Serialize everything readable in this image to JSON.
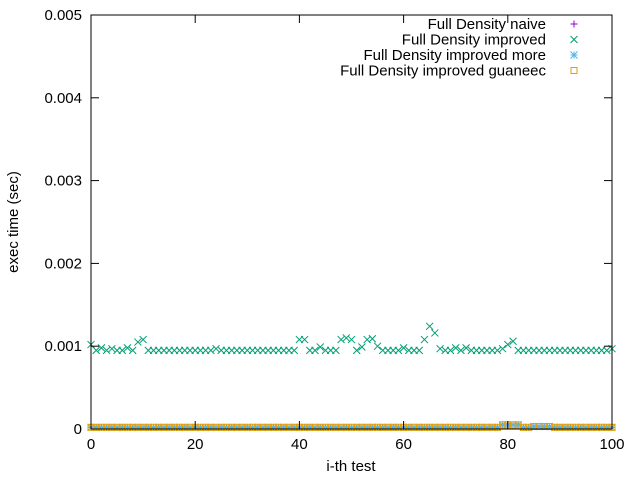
{
  "chart_data": {
    "type": "scatter",
    "title": "",
    "xlabel": "i-th test",
    "ylabel": "exec time (sec)",
    "xlim": [
      0,
      100
    ],
    "ylim": [
      0,
      0.005
    ],
    "x_ticks": [
      0,
      20,
      40,
      60,
      80,
      100
    ],
    "x_tick_labels": [
      "0",
      "20",
      "40",
      "60",
      "80",
      "100"
    ],
    "y_ticks": [
      0,
      0.001,
      0.002,
      0.003,
      0.004,
      0.005
    ],
    "y_tick_labels": [
      "0",
      "0.001",
      "0.002",
      "0.003",
      "0.004",
      "0.005"
    ],
    "grid": false,
    "legend_position": "top-right",
    "series": [
      {
        "name": "Full Density naive",
        "marker": "plus",
        "color": "#9400d3",
        "x_start": 0,
        "x_step": 1,
        "values": [
          2e-05,
          2e-05,
          2e-05,
          2e-05,
          2e-05,
          2e-05,
          2e-05,
          2e-05,
          2e-05,
          2e-05,
          2e-05,
          2e-05,
          2e-05,
          2e-05,
          2e-05,
          2e-05,
          2e-05,
          2e-05,
          2e-05,
          2e-05,
          2e-05,
          2e-05,
          2e-05,
          2e-05,
          2e-05,
          2e-05,
          2e-05,
          2e-05,
          2e-05,
          2e-05,
          2e-05,
          2e-05,
          2e-05,
          2e-05,
          2e-05,
          2e-05,
          2e-05,
          2e-05,
          2e-05,
          2e-05,
          2e-05,
          2e-05,
          2e-05,
          2e-05,
          2e-05,
          2e-05,
          2e-05,
          2e-05,
          2e-05,
          2e-05,
          2e-05,
          2e-05,
          2e-05,
          2e-05,
          2e-05,
          2e-05,
          2e-05,
          2e-05,
          2e-05,
          2e-05,
          2e-05,
          2e-05,
          2e-05,
          2e-05,
          2e-05,
          2e-05,
          2e-05,
          2e-05,
          2e-05,
          2e-05,
          2e-05,
          2e-05,
          2e-05,
          2e-05,
          2e-05,
          2e-05,
          2e-05,
          2e-05,
          2e-05,
          5e-05,
          5e-05,
          5e-05,
          5e-05,
          2e-05,
          2e-05,
          3e-05,
          3e-05,
          3e-05,
          3e-05,
          2e-05,
          2e-05,
          2e-05,
          2e-05,
          2e-05,
          2e-05,
          2e-05,
          2e-05,
          2e-05,
          2e-05,
          2e-05,
          2e-05
        ]
      },
      {
        "name": "Full Density improved",
        "marker": "cross",
        "color": "#009e73",
        "x_start": 0,
        "x_step": 1,
        "values": [
          0.00102,
          0.00095,
          0.00098,
          0.00095,
          0.00097,
          0.00095,
          0.00095,
          0.00098,
          0.00095,
          0.00105,
          0.00108,
          0.00095,
          0.00095,
          0.00095,
          0.00095,
          0.00095,
          0.00095,
          0.00095,
          0.00095,
          0.00095,
          0.00095,
          0.00095,
          0.00095,
          0.00095,
          0.00097,
          0.00095,
          0.00095,
          0.00095,
          0.00095,
          0.00095,
          0.00095,
          0.00095,
          0.00095,
          0.00095,
          0.00095,
          0.00095,
          0.00095,
          0.00095,
          0.00095,
          0.00095,
          0.00108,
          0.00108,
          0.00095,
          0.00095,
          0.00099,
          0.00095,
          0.00095,
          0.00095,
          0.00108,
          0.0011,
          0.00108,
          0.00095,
          0.00099,
          0.00108,
          0.00109,
          0.001,
          0.00095,
          0.00095,
          0.00095,
          0.00095,
          0.00098,
          0.00095,
          0.00095,
          0.00095,
          0.00108,
          0.00124,
          0.00116,
          0.00097,
          0.00095,
          0.00095,
          0.00098,
          0.00095,
          0.00098,
          0.00095,
          0.00095,
          0.00095,
          0.00095,
          0.00095,
          0.00095,
          0.00097,
          0.00102,
          0.00106,
          0.00095,
          0.00095,
          0.00095,
          0.00095,
          0.00095,
          0.00095,
          0.00095,
          0.00095,
          0.00095,
          0.00095,
          0.00095,
          0.00095,
          0.00095,
          0.00095,
          0.00095,
          0.00095,
          0.00095,
          0.00095,
          0.00097
        ]
      },
      {
        "name": "Full Density improved more",
        "marker": "star",
        "color": "#56b4e9",
        "x_start": 0,
        "x_step": 1,
        "values": [
          2e-05,
          2e-05,
          2e-05,
          2e-05,
          2e-05,
          2e-05,
          2e-05,
          2e-05,
          2e-05,
          2e-05,
          2e-05,
          2e-05,
          2e-05,
          2e-05,
          2e-05,
          2e-05,
          2e-05,
          2e-05,
          2e-05,
          2e-05,
          2e-05,
          2e-05,
          2e-05,
          2e-05,
          2e-05,
          2e-05,
          2e-05,
          2e-05,
          2e-05,
          2e-05,
          2e-05,
          2e-05,
          2e-05,
          2e-05,
          2e-05,
          2e-05,
          2e-05,
          2e-05,
          2e-05,
          2e-05,
          2e-05,
          2e-05,
          2e-05,
          2e-05,
          2e-05,
          2e-05,
          2e-05,
          2e-05,
          2e-05,
          2e-05,
          2e-05,
          2e-05,
          2e-05,
          2e-05,
          2e-05,
          2e-05,
          2e-05,
          2e-05,
          2e-05,
          2e-05,
          2e-05,
          2e-05,
          2e-05,
          2e-05,
          2e-05,
          2e-05,
          2e-05,
          2e-05,
          2e-05,
          2e-05,
          2e-05,
          2e-05,
          2e-05,
          2e-05,
          2e-05,
          2e-05,
          2e-05,
          2e-05,
          2e-05,
          5e-05,
          5e-05,
          5e-05,
          5e-05,
          2e-05,
          2e-05,
          3e-05,
          3e-05,
          3e-05,
          3e-05,
          2e-05,
          2e-05,
          2e-05,
          2e-05,
          2e-05,
          2e-05,
          2e-05,
          2e-05,
          2e-05,
          2e-05,
          2e-05,
          2e-05
        ]
      },
      {
        "name": "Full Density improved guaneec",
        "marker": "square",
        "color": "#e69f00",
        "x_start": 0,
        "x_step": 1,
        "values": [
          2e-05,
          2e-05,
          2e-05,
          2e-05,
          2e-05,
          2e-05,
          2e-05,
          2e-05,
          2e-05,
          2e-05,
          2e-05,
          2e-05,
          2e-05,
          2e-05,
          2e-05,
          2e-05,
          2e-05,
          2e-05,
          2e-05,
          2e-05,
          2e-05,
          2e-05,
          2e-05,
          2e-05,
          2e-05,
          2e-05,
          2e-05,
          2e-05,
          2e-05,
          2e-05,
          2e-05,
          2e-05,
          2e-05,
          2e-05,
          2e-05,
          2e-05,
          2e-05,
          2e-05,
          2e-05,
          2e-05,
          2e-05,
          2e-05,
          2e-05,
          2e-05,
          2e-05,
          2e-05,
          2e-05,
          2e-05,
          2e-05,
          2e-05,
          2e-05,
          2e-05,
          2e-05,
          2e-05,
          2e-05,
          2e-05,
          2e-05,
          2e-05,
          2e-05,
          2e-05,
          2e-05,
          2e-05,
          2e-05,
          2e-05,
          2e-05,
          2e-05,
          2e-05,
          2e-05,
          2e-05,
          2e-05,
          2e-05,
          2e-05,
          2e-05,
          2e-05,
          2e-05,
          2e-05,
          2e-05,
          2e-05,
          2e-05,
          5e-05,
          5e-05,
          5e-05,
          5e-05,
          2e-05,
          2e-05,
          3e-05,
          3e-05,
          3e-05,
          3e-05,
          2e-05,
          2e-05,
          2e-05,
          2e-05,
          2e-05,
          2e-05,
          2e-05,
          2e-05,
          2e-05,
          2e-05,
          2e-05,
          2e-05
        ]
      }
    ]
  }
}
